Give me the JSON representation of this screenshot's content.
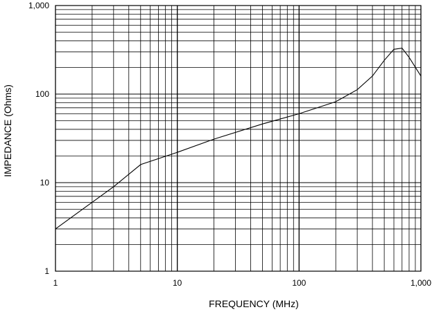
{
  "chart_data": {
    "type": "line",
    "title": "",
    "xlabel": "FREQUENCY (MHz)",
    "ylabel": "IMPEDANCE (Ohms)",
    "xscale": "log",
    "yscale": "log",
    "xlim": [
      1,
      1000
    ],
    "ylim": [
      1,
      1000
    ],
    "grid": true,
    "x_tick_labels": [
      "1",
      "10",
      "100",
      "1,000"
    ],
    "y_tick_labels": [
      "1",
      "10",
      "100",
      "1,000"
    ],
    "series": [
      {
        "x": [
          1,
          2,
          3,
          5,
          10,
          20,
          50,
          100,
          200,
          300,
          400,
          500,
          600,
          700,
          800,
          1000
        ],
        "y": [
          3,
          6,
          9,
          16,
          22,
          31,
          46,
          60,
          82,
          112,
          160,
          240,
          320,
          330,
          260,
          160
        ]
      }
    ]
  }
}
